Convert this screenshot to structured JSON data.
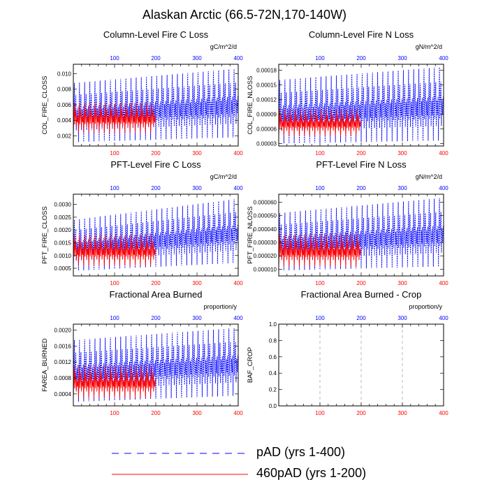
{
  "figure_title": "Alaskan Arctic (66.5-72N,170-140W)",
  "legend": {
    "entries": [
      {
        "label": "pAD (yrs 1-400)",
        "color": "#0000ff",
        "style": "dashed"
      },
      {
        "label": "460pAD (yrs 1-200)",
        "color": "#ff0000",
        "style": "solid"
      }
    ]
  },
  "chart_data": [
    {
      "type": "line",
      "title": "Column-Level Fire C Loss",
      "ylabel": "COL_FIRE_CLOSS",
      "units": "gC/m^2/d",
      "xlim": [
        0,
        400
      ],
      "ylim": [
        0.0007,
        0.0112
      ],
      "bottom_ticks": [
        "100",
        "200",
        "300",
        "400"
      ],
      "bottom_tick_values": [
        100,
        200,
        300,
        400
      ],
      "top_ticks": [
        "100",
        "200",
        "300",
        "400"
      ],
      "top_tick_values": [
        100,
        200,
        300,
        400
      ],
      "ytick_labels": [
        "0.002",
        "0.004",
        "0.006",
        "0.008",
        "0.010"
      ],
      "ytick_values": [
        0.002,
        0.004,
        0.006,
        0.008,
        0.01
      ],
      "series": [
        {
          "name": "pAD (yrs 1-400)",
          "color": "#0000ff",
          "years": 400,
          "cycle": 12.5,
          "peak_start": 0.0088,
          "peak_end": 0.0106,
          "low_start": 0.0012,
          "low_end": 0.0018
        },
        {
          "name": "460pAD (yrs 1-200)",
          "color": "#ff0000",
          "years": 200,
          "cycle": 12.5,
          "peak_start": 0.0062,
          "peak_end": 0.0062,
          "low_start": 0.0024,
          "low_end": 0.0024
        }
      ]
    },
    {
      "type": "line",
      "title": "Column-Level Fire N Loss",
      "ylabel": "COL_FIRE_NLOSS",
      "units": "gN/m^2/d",
      "xlim": [
        0,
        400
      ],
      "ylim": [
        2.5e-05,
        0.000192
      ],
      "bottom_ticks": [
        "100",
        "200",
        "300",
        "400"
      ],
      "bottom_tick_values": [
        100,
        200,
        300,
        400
      ],
      "top_ticks": [
        "100",
        "200",
        "300",
        "400"
      ],
      "top_tick_values": [
        100,
        200,
        300,
        400
      ],
      "ytick_labels": [
        "0.00003",
        "0.00006",
        "0.00009",
        "0.00012",
        "0.00015",
        "0.00018"
      ],
      "ytick_values": [
        3e-05,
        6e-05,
        9e-05,
        0.00012,
        0.00015,
        0.00018
      ],
      "series": [
        {
          "name": "pAD (yrs 1-400)",
          "color": "#0000ff",
          "years": 400,
          "cycle": 12.5,
          "peak_start": 0.00016,
          "peak_end": 0.000186,
          "low_start": 3e-05,
          "low_end": 3.6e-05
        },
        {
          "name": "460pAD (yrs 1-200)",
          "color": "#ff0000",
          "years": 200,
          "cycle": 12.5,
          "peak_start": 0.0001,
          "peak_end": 0.0001,
          "low_start": 4.5e-05,
          "low_end": 4.5e-05
        }
      ]
    },
    {
      "type": "line",
      "title": "PFT-Level Fire C Loss",
      "ylabel": "PFT_FIRE_CLOSS",
      "units": "gC/m^2/d",
      "xlim": [
        0,
        400
      ],
      "ylim": [
        0.0002,
        0.0034
      ],
      "bottom_ticks": [
        "100",
        "200",
        "300",
        "400"
      ],
      "bottom_tick_values": [
        100,
        200,
        300,
        400
      ],
      "top_ticks": [
        "100",
        "200",
        "300",
        "400"
      ],
      "top_tick_values": [
        100,
        200,
        300,
        400
      ],
      "ytick_labels": [
        "0.0005",
        "0.0010",
        "0.0015",
        "0.0020",
        "0.0025",
        "0.0030"
      ],
      "ytick_values": [
        0.0005,
        0.001,
        0.0015,
        0.002,
        0.0025,
        0.003
      ],
      "series": [
        {
          "name": "pAD (yrs 1-400)",
          "color": "#0000ff",
          "years": 400,
          "cycle": 12.5,
          "peak_start": 0.0024,
          "peak_end": 0.0032,
          "low_start": 0.0004,
          "low_end": 0.0007
        },
        {
          "name": "460pAD (yrs 1-200)",
          "color": "#ff0000",
          "years": 200,
          "cycle": 12.5,
          "peak_start": 0.0018,
          "peak_end": 0.0018,
          "low_start": 0.0006,
          "low_end": 0.0006
        }
      ]
    },
    {
      "type": "line",
      "title": "PFT-Level Fire N Loss",
      "ylabel": "PFT_FIRE_NLOSS",
      "units": "gN/m^2/d",
      "xlim": [
        0,
        400
      ],
      "ylim": [
        5e-06,
        6.6e-05
      ],
      "bottom_ticks": [
        "100",
        "200",
        "300",
        "400"
      ],
      "bottom_tick_values": [
        100,
        200,
        300,
        400
      ],
      "top_ticks": [
        "100",
        "200",
        "300",
        "400"
      ],
      "top_tick_values": [
        100,
        200,
        300,
        400
      ],
      "ytick_labels": [
        "0.000010",
        "0.000020",
        "0.000030",
        "0.000040",
        "0.000050",
        "0.000060"
      ],
      "ytick_values": [
        1e-05,
        2e-05,
        3e-05,
        4e-05,
        5e-05,
        6e-05
      ],
      "series": [
        {
          "name": "pAD (yrs 1-400)",
          "color": "#0000ff",
          "years": 400,
          "cycle": 12.5,
          "peak_start": 5.2e-05,
          "peak_end": 6.3e-05,
          "low_start": 9e-06,
          "low_end": 1.2e-05
        },
        {
          "name": "460pAD (yrs 1-200)",
          "color": "#ff0000",
          "years": 200,
          "cycle": 12.5,
          "peak_start": 3.6e-05,
          "peak_end": 3.6e-05,
          "low_start": 1.2e-05,
          "low_end": 1.2e-05
        }
      ]
    },
    {
      "type": "line",
      "title": "Fractional Area Burned",
      "ylabel": "FAREA_BURNED",
      "units": "proportion/y",
      "xlim": [
        0,
        400
      ],
      "ylim": [
        0.0001,
        0.00215
      ],
      "bottom_ticks": [
        "100",
        "200",
        "300",
        "400"
      ],
      "bottom_tick_values": [
        100,
        200,
        300,
        400
      ],
      "top_ticks": [
        "100",
        "200",
        "300",
        "400"
      ],
      "top_tick_values": [
        100,
        200,
        300,
        400
      ],
      "ytick_labels": [
        "0.0004",
        "0.0008",
        "0.0012",
        "0.0016",
        "0.0020"
      ],
      "ytick_values": [
        0.0004,
        0.0008,
        0.0012,
        0.0016,
        0.002
      ],
      "series": [
        {
          "name": "pAD (yrs 1-400)",
          "color": "#0000ff",
          "years": 400,
          "cycle": 12.5,
          "peak_start": 0.00175,
          "peak_end": 0.00205,
          "low_start": 0.0002,
          "low_end": 0.00035
        },
        {
          "name": "460pAD (yrs 1-200)",
          "color": "#ff0000",
          "years": 200,
          "cycle": 12.5,
          "peak_start": 0.0011,
          "peak_end": 0.0011,
          "low_start": 0.0003,
          "low_end": 0.0003
        }
      ]
    },
    {
      "type": "line",
      "title": "Fractional Area Burned - Crop",
      "ylabel": "BAF_CROP",
      "units": "proportion/y",
      "xlim": [
        0,
        400
      ],
      "ylim": [
        0.0,
        1.0
      ],
      "bottom_ticks": [
        "100",
        "200",
        "300",
        "400"
      ],
      "bottom_tick_values": [
        100,
        200,
        300,
        400
      ],
      "top_ticks": [
        "100",
        "200",
        "300",
        "400"
      ],
      "top_tick_values": [
        100,
        200,
        300,
        400
      ],
      "ytick_labels": [
        "0.0",
        "0.2",
        "0.4",
        "0.6",
        "0.8",
        "1.0"
      ],
      "ytick_values": [
        0.0,
        0.2,
        0.4,
        0.6,
        0.8,
        1.0
      ],
      "series": []
    }
  ]
}
